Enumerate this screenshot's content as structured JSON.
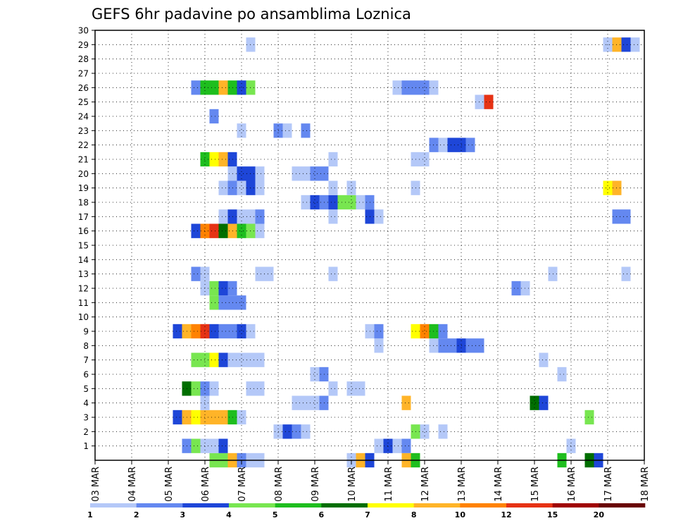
{
  "chart_data": {
    "type": "heatmap",
    "title": "GEFS 6hr padavine po ansamblima Loznica",
    "xlabel": "",
    "ylabel": "",
    "x_range": [
      "03 MAR 00Z",
      "18 MAR 00Z"
    ],
    "x_step_hours": 6,
    "x_ticks": [
      "03 MAR",
      "04 MAR",
      "05 MAR",
      "06 MAR",
      "07 MAR",
      "08 MAR",
      "09 MAR",
      "10 MAR",
      "11 MAR",
      "12 MAR",
      "13 MAR",
      "14 MAR",
      "15 MAR",
      "16 MAR",
      "17 MAR",
      "18 MAR"
    ],
    "y_ticks": [
      "1",
      "2",
      "3",
      "4",
      "5",
      "6",
      "7",
      "8",
      "9",
      "10",
      "11",
      "12",
      "13",
      "14",
      "15",
      "16",
      "17",
      "18",
      "19",
      "20",
      "21",
      "22",
      "23",
      "24",
      "25",
      "26",
      "27",
      "28",
      "29",
      "30"
    ],
    "y_range": [
      0,
      30
    ],
    "grid": true,
    "legend": {
      "placement": "bottom",
      "levels": [
        "1",
        "2",
        "3",
        "4",
        "5",
        "6",
        "7",
        "8",
        "10",
        "12",
        "15",
        "20"
      ],
      "colors": [
        "#b4c8f8",
        "#6488f0",
        "#1e46d8",
        "#78e650",
        "#1ebe1e",
        "#006e00",
        "#ffff00",
        "#ffb428",
        "#ff8200",
        "#e63214",
        "#a00000",
        "#690000"
      ]
    },
    "member_rows": [
      {
        "member": "0",
        "cells": [
          [
            "06 MAR 06Z",
            4
          ],
          [
            "06 MAR 12Z",
            4
          ],
          [
            "06 MAR 18Z",
            8
          ],
          [
            "07 MAR 00Z",
            2
          ],
          [
            "07 MAR 06Z",
            1
          ],
          [
            "07 MAR 12Z",
            1
          ],
          [
            "10 MAR 00Z",
            1
          ],
          [
            "10 MAR 06Z",
            8
          ],
          [
            "10 MAR 12Z",
            3
          ],
          [
            "11 MAR 12Z",
            8
          ],
          [
            "11 MAR 18Z",
            5
          ],
          [
            "15 MAR 18Z",
            5
          ],
          [
            "16 MAR 12Z",
            6
          ],
          [
            "16 MAR 18Z",
            3
          ]
        ]
      },
      {
        "member": "1",
        "cells": [
          [
            "05 MAR 12Z",
            2
          ],
          [
            "05 MAR 18Z",
            4
          ],
          [
            "06 MAR 00Z",
            1
          ],
          [
            "06 MAR 06Z",
            1
          ],
          [
            "06 MAR 12Z",
            3
          ],
          [
            "10 MAR 18Z",
            1
          ],
          [
            "11 MAR 00Z",
            3
          ],
          [
            "11 MAR 06Z",
            1
          ],
          [
            "11 MAR 12Z",
            2
          ],
          [
            "16 MAR 00Z",
            1
          ]
        ]
      },
      {
        "member": "2",
        "cells": [
          [
            "08 MAR 00Z",
            1
          ],
          [
            "08 MAR 06Z",
            3
          ],
          [
            "08 MAR 12Z",
            2
          ],
          [
            "08 MAR 18Z",
            1
          ],
          [
            "11 MAR 18Z",
            4
          ],
          [
            "12 MAR 00Z",
            1
          ],
          [
            "12 MAR 12Z",
            1
          ]
        ]
      },
      {
        "member": "3",
        "cells": [
          [
            "05 MAR 06Z",
            3
          ],
          [
            "05 MAR 12Z",
            8
          ],
          [
            "05 MAR 18Z",
            7
          ],
          [
            "06 MAR 00Z",
            8
          ],
          [
            "06 MAR 06Z",
            8
          ],
          [
            "06 MAR 12Z",
            8
          ],
          [
            "06 MAR 18Z",
            5
          ],
          [
            "07 MAR 00Z",
            1
          ],
          [
            "16 MAR 12Z",
            4
          ]
        ]
      },
      {
        "member": "4",
        "cells": [
          [
            "06 MAR 00Z",
            1
          ],
          [
            "08 MAR 12Z",
            1
          ],
          [
            "08 MAR 18Z",
            1
          ],
          [
            "09 MAR 00Z",
            1
          ],
          [
            "09 MAR 06Z",
            2
          ],
          [
            "11 MAR 12Z",
            8
          ],
          [
            "15 MAR 00Z",
            6
          ],
          [
            "15 MAR 06Z",
            3
          ]
        ]
      },
      {
        "member": "5",
        "cells": [
          [
            "05 MAR 12Z",
            6
          ],
          [
            "05 MAR 18Z",
            4
          ],
          [
            "06 MAR 00Z",
            2
          ],
          [
            "06 MAR 06Z",
            1
          ],
          [
            "07 MAR 06Z",
            1
          ],
          [
            "07 MAR 12Z",
            1
          ],
          [
            "09 MAR 12Z",
            1
          ],
          [
            "10 MAR 00Z",
            1
          ],
          [
            "10 MAR 06Z",
            1
          ]
        ]
      },
      {
        "member": "6",
        "cells": [
          [
            "09 MAR 00Z",
            1
          ],
          [
            "09 MAR 06Z",
            2
          ],
          [
            "15 MAR 18Z",
            1
          ]
        ]
      },
      {
        "member": "7",
        "cells": [
          [
            "05 MAR 18Z",
            4
          ],
          [
            "06 MAR 00Z",
            4
          ],
          [
            "06 MAR 06Z",
            7
          ],
          [
            "06 MAR 12Z",
            3
          ],
          [
            "06 MAR 18Z",
            1
          ],
          [
            "07 MAR 00Z",
            1
          ],
          [
            "07 MAR 06Z",
            1
          ],
          [
            "07 MAR 12Z",
            1
          ],
          [
            "15 MAR 06Z",
            1
          ]
        ]
      },
      {
        "member": "8",
        "cells": [
          [
            "10 MAR 18Z",
            1
          ],
          [
            "12 MAR 06Z",
            1
          ],
          [
            "12 MAR 12Z",
            2
          ],
          [
            "12 MAR 18Z",
            2
          ],
          [
            "13 MAR 00Z",
            3
          ],
          [
            "13 MAR 06Z",
            2
          ],
          [
            "13 MAR 12Z",
            2
          ]
        ]
      },
      {
        "member": "9",
        "cells": [
          [
            "05 MAR 06Z",
            3
          ],
          [
            "05 MAR 12Z",
            8
          ],
          [
            "05 MAR 18Z",
            10
          ],
          [
            "06 MAR 00Z",
            12
          ],
          [
            "06 MAR 06Z",
            3
          ],
          [
            "06 MAR 12Z",
            2
          ],
          [
            "06 MAR 18Z",
            2
          ],
          [
            "07 MAR 00Z",
            3
          ],
          [
            "07 MAR 06Z",
            1
          ],
          [
            "10 MAR 12Z",
            1
          ],
          [
            "10 MAR 18Z",
            2
          ],
          [
            "11 MAR 18Z",
            7
          ],
          [
            "12 MAR 00Z",
            10
          ],
          [
            "12 MAR 06Z",
            5
          ],
          [
            "12 MAR 12Z",
            2
          ]
        ]
      },
      {
        "member": "10",
        "cells": []
      },
      {
        "member": "11",
        "cells": [
          [
            "06 MAR 06Z",
            4
          ],
          [
            "06 MAR 12Z",
            2
          ],
          [
            "06 MAR 18Z",
            2
          ],
          [
            "07 MAR 00Z",
            2
          ]
        ]
      },
      {
        "member": "12",
        "cells": [
          [
            "06 MAR 00Z",
            1
          ],
          [
            "06 MAR 06Z",
            4
          ],
          [
            "06 MAR 12Z",
            3
          ],
          [
            "06 MAR 18Z",
            2
          ],
          [
            "14 MAR 12Z",
            2
          ],
          [
            "14 MAR 18Z",
            1
          ]
        ]
      },
      {
        "member": "13",
        "cells": [
          [
            "05 MAR 18Z",
            2
          ],
          [
            "06 MAR 00Z",
            1
          ],
          [
            "07 MAR 12Z",
            1
          ],
          [
            "07 MAR 18Z",
            1
          ],
          [
            "09 MAR 12Z",
            1
          ],
          [
            "15 MAR 12Z",
            1
          ],
          [
            "17 MAR 12Z",
            1
          ]
        ]
      },
      {
        "member": "14",
        "cells": []
      },
      {
        "member": "15",
        "cells": []
      },
      {
        "member": "16",
        "cells": [
          [
            "05 MAR 18Z",
            3
          ],
          [
            "06 MAR 00Z",
            10
          ],
          [
            "06 MAR 06Z",
            12
          ],
          [
            "06 MAR 12Z",
            6
          ],
          [
            "06 MAR 18Z",
            8
          ],
          [
            "07 MAR 00Z",
            5
          ],
          [
            "07 MAR 06Z",
            4
          ],
          [
            "07 MAR 12Z",
            1
          ]
        ]
      },
      {
        "member": "17",
        "cells": [
          [
            "06 MAR 12Z",
            1
          ],
          [
            "06 MAR 18Z",
            3
          ],
          [
            "07 MAR 00Z",
            1
          ],
          [
            "07 MAR 06Z",
            1
          ],
          [
            "07 MAR 12Z",
            2
          ],
          [
            "09 MAR 12Z",
            1
          ],
          [
            "10 MAR 12Z",
            3
          ],
          [
            "10 MAR 18Z",
            1
          ],
          [
            "17 MAR 06Z",
            2
          ],
          [
            "17 MAR 12Z",
            2
          ]
        ]
      },
      {
        "member": "18",
        "cells": [
          [
            "08 MAR 18Z",
            1
          ],
          [
            "09 MAR 00Z",
            3
          ],
          [
            "09 MAR 06Z",
            2
          ],
          [
            "09 MAR 12Z",
            3
          ],
          [
            "09 MAR 18Z",
            4
          ],
          [
            "10 MAR 00Z",
            4
          ],
          [
            "10 MAR 06Z",
            1
          ],
          [
            "10 MAR 12Z",
            2
          ]
        ]
      },
      {
        "member": "19",
        "cells": [
          [
            "06 MAR 12Z",
            1
          ],
          [
            "06 MAR 18Z",
            2
          ],
          [
            "07 MAR 00Z",
            1
          ],
          [
            "07 MAR 06Z",
            3
          ],
          [
            "07 MAR 12Z",
            1
          ],
          [
            "09 MAR 12Z",
            1
          ],
          [
            "10 MAR 00Z",
            1
          ],
          [
            "11 MAR 18Z",
            1
          ],
          [
            "17 MAR 00Z",
            7
          ],
          [
            "17 MAR 06Z",
            8
          ]
        ]
      },
      {
        "member": "20",
        "cells": [
          [
            "06 MAR 18Z",
            1
          ],
          [
            "07 MAR 00Z",
            3
          ],
          [
            "07 MAR 06Z",
            3
          ],
          [
            "07 MAR 12Z",
            1
          ],
          [
            "08 MAR 12Z",
            1
          ],
          [
            "08 MAR 18Z",
            1
          ],
          [
            "09 MAR 00Z",
            2
          ],
          [
            "09 MAR 06Z",
            2
          ]
        ]
      },
      {
        "member": "21",
        "cells": [
          [
            "06 MAR 00Z",
            5
          ],
          [
            "06 MAR 06Z",
            7
          ],
          [
            "06 MAR 12Z",
            8
          ],
          [
            "06 MAR 18Z",
            3
          ],
          [
            "09 MAR 12Z",
            1
          ],
          [
            "11 MAR 18Z",
            1
          ],
          [
            "12 MAR 00Z",
            1
          ]
        ]
      },
      {
        "member": "22",
        "cells": [
          [
            "12 MAR 06Z",
            2
          ],
          [
            "12 MAR 12Z",
            1
          ],
          [
            "12 MAR 18Z",
            3
          ],
          [
            "13 MAR 00Z",
            3
          ],
          [
            "13 MAR 06Z",
            2
          ]
        ]
      },
      {
        "member": "23",
        "cells": [
          [
            "07 MAR 00Z",
            1
          ],
          [
            "08 MAR 00Z",
            2
          ],
          [
            "08 MAR 06Z",
            1
          ],
          [
            "08 MAR 18Z",
            2
          ]
        ]
      },
      {
        "member": "24",
        "cells": [
          [
            "06 MAR 06Z",
            2
          ]
        ]
      },
      {
        "member": "25",
        "cells": [
          [
            "13 MAR 12Z",
            1
          ],
          [
            "13 MAR 18Z",
            12
          ]
        ]
      },
      {
        "member": "26",
        "cells": [
          [
            "05 MAR 18Z",
            2
          ],
          [
            "06 MAR 00Z",
            5
          ],
          [
            "06 MAR 06Z",
            5
          ],
          [
            "06 MAR 12Z",
            8
          ],
          [
            "06 MAR 18Z",
            5
          ],
          [
            "07 MAR 00Z",
            3
          ],
          [
            "07 MAR 06Z",
            4
          ],
          [
            "11 MAR 06Z",
            1
          ],
          [
            "11 MAR 12Z",
            2
          ],
          [
            "11 MAR 18Z",
            2
          ],
          [
            "12 MAR 00Z",
            2
          ],
          [
            "12 MAR 06Z",
            1
          ]
        ]
      },
      {
        "member": "27",
        "cells": []
      },
      {
        "member": "28",
        "cells": []
      },
      {
        "member": "29",
        "cells": [
          [
            "07 MAR 06Z",
            1
          ],
          [
            "17 MAR 00Z",
            1
          ],
          [
            "17 MAR 06Z",
            8
          ],
          [
            "17 MAR 12Z",
            3
          ],
          [
            "17 MAR 18Z",
            1
          ]
        ]
      }
    ]
  }
}
